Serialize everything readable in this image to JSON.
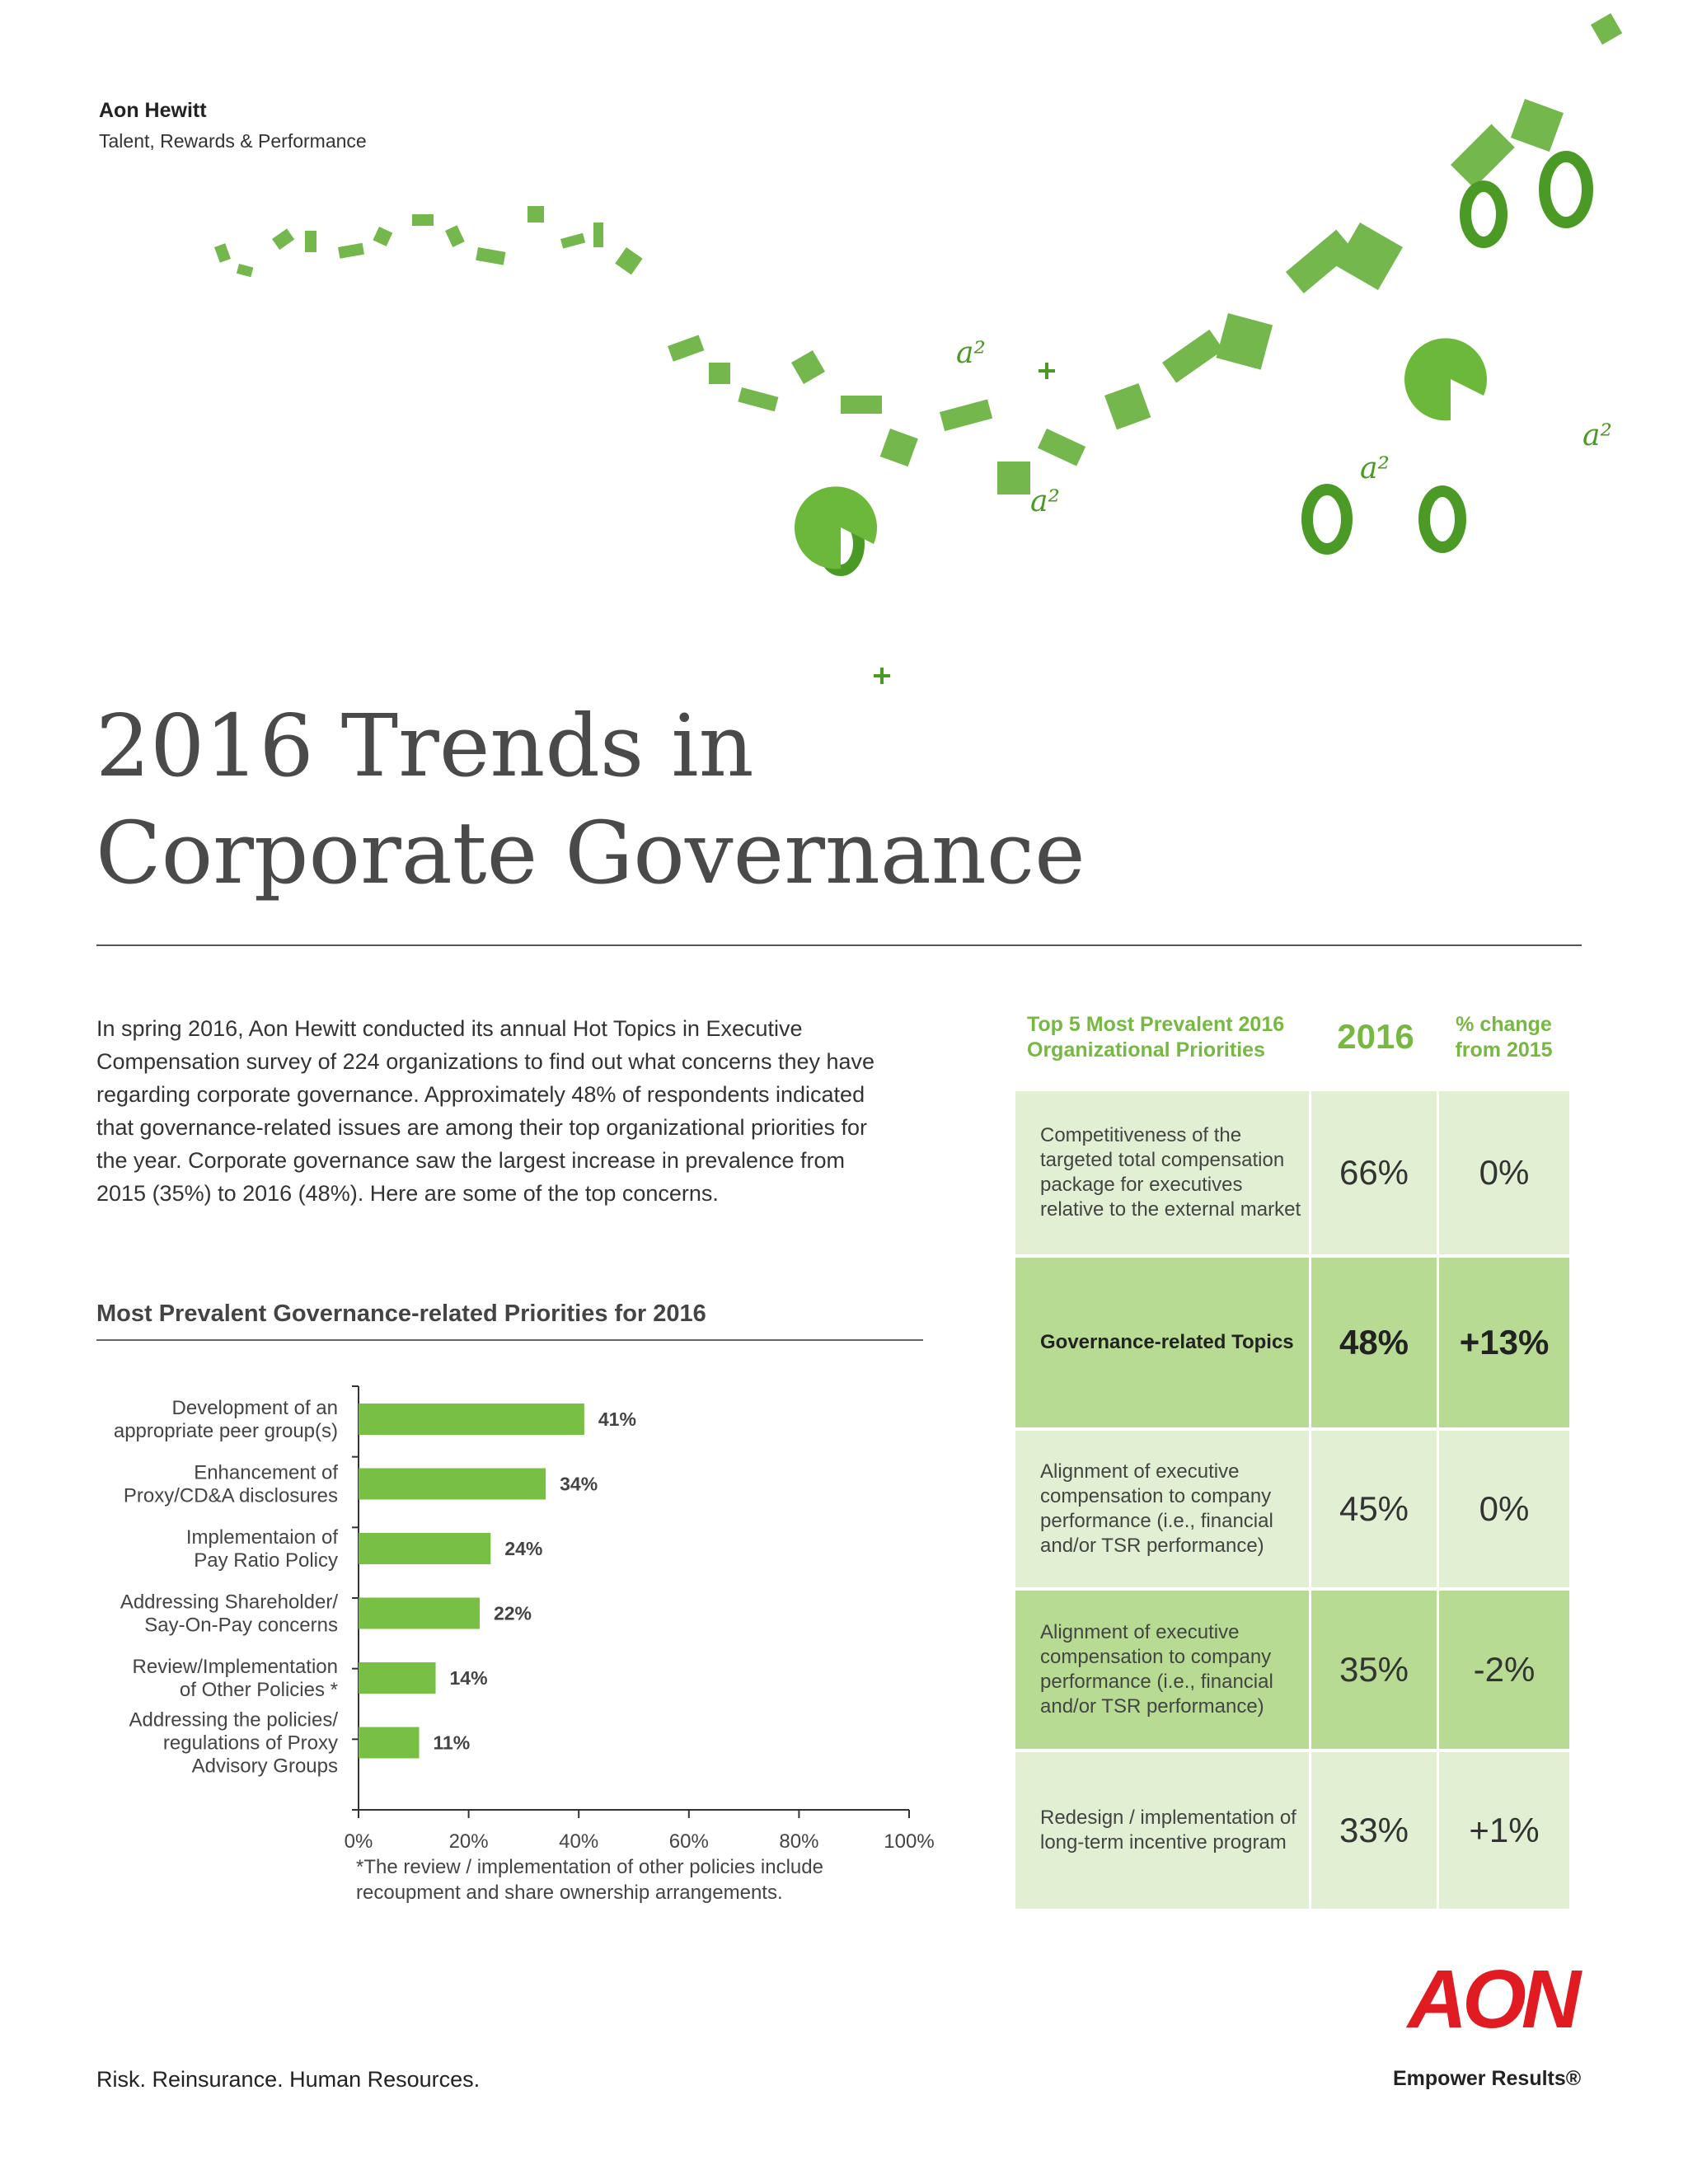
{
  "header": {
    "brand": "Aon Hewitt",
    "subtitle": "Talent, Rewards & Performance"
  },
  "title_line1": "2016 Trends in",
  "title_line2": "Corporate Governance",
  "intro": "In spring 2016, Aon Hewitt conducted its annual Hot Topics in Executive Compensation survey of 224 organizations to find out what concerns they have regarding corporate governance. Approximately 48% of respondents indicated that governance-related issues are among their top organizational priorities for the year. Corporate governance saw the largest increase in prevalence from 2015 (35%) to 2016 (48%). Here are some of the top concerns.",
  "chart_data": {
    "type": "bar",
    "orientation": "horizontal",
    "title": "Most Prevalent Governance-related Priorities for 2016",
    "categories": [
      [
        "Development of an",
        "appropriate peer group(s)"
      ],
      [
        "Enhancement of",
        "Proxy/CD&A disclosures"
      ],
      [
        "Implementaion of",
        "Pay Ratio Policy"
      ],
      [
        "Addressing Shareholder/",
        "Say-On-Pay concerns"
      ],
      [
        "Review/Implementation",
        "of Other Policies *"
      ],
      [
        "Addressing the policies/",
        "regulations of Proxy",
        "Advisory Groups"
      ]
    ],
    "values": [
      41,
      34,
      24,
      22,
      14,
      11
    ],
    "value_labels": [
      "41%",
      "34%",
      "24%",
      "22%",
      "14%",
      "11%"
    ],
    "xlim": [
      0,
      100
    ],
    "xticks": [
      0,
      20,
      40,
      60,
      80,
      100
    ],
    "xtick_labels": [
      "0%",
      "20%",
      "40%",
      "60%",
      "80%",
      "100%"
    ],
    "color": "#77c043"
  },
  "footnote": "*The review / implementation of other policies include recoupment and share ownership arrangements.",
  "table": {
    "header_label": "Top 5 Most Prevalent 2016 Organizational Priorities",
    "header_year": "2016",
    "header_change": "% change from 2015",
    "rows": [
      {
        "label": "Competitiveness of the targeted total compensation package for executives relative to the external market",
        "year": "66%",
        "change": "0%"
      },
      {
        "label": "Governance-related Topics",
        "year": "48%",
        "change": "+13%"
      },
      {
        "label": "Alignment of executive compensation to company performance (i.e., financial and/or TSR performance)",
        "year": "45%",
        "change": "0%"
      },
      {
        "label": "Alignment of executive compensation to company performance (i.e., financial and/or TSR performance)",
        "year": "35%",
        "change": "-2%"
      },
      {
        "label": "Redesign / implementation of long-term incentive program",
        "year": "33%",
        "change": "+1%"
      }
    ]
  },
  "footer": {
    "tagline": "Risk. Reinsurance. Human Resources.",
    "logo_text": "AON",
    "logo_tagline": "Empower Results®"
  },
  "colors": {
    "accent_green": "#77b843",
    "bar_green": "#77c043",
    "aon_red": "#e11b22"
  }
}
